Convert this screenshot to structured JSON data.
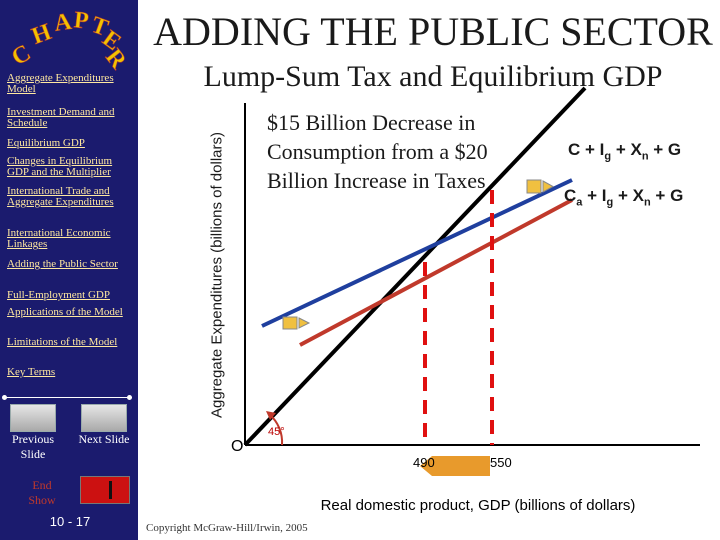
{
  "header": {
    "title": "ADDING THE PUBLIC SECTOR",
    "subtitle": "Lump-Sum Tax and Equilibrium GDP"
  },
  "sidebar": {
    "logo_text": "CHAPTER",
    "items": [
      {
        "label": "Aggregate Expenditures Model"
      },
      {
        "label": "Investment Demand and Schedule"
      },
      {
        "label": "Equilibrium GDP"
      },
      {
        "label": "Changes in Equilibrium GDP and the Multiplier"
      },
      {
        "label": "International Trade and Aggregate Expenditures"
      },
      {
        "label": "International Economic Linkages"
      },
      {
        "label": "Adding the Public Sector"
      },
      {
        "label": "Full-Employment GDP"
      },
      {
        "label": "Applications of the Model"
      },
      {
        "label": "Limitations of the Model"
      },
      {
        "label": "Key Terms"
      }
    ],
    "prev_label": "Previous Slide",
    "next_label": "Next Slide",
    "end_label": "End Show",
    "page_number": "10 - 17"
  },
  "diagram": {
    "ylabel": "Aggregate Expenditures (billions of dollars)",
    "xlabel": "Real domestic product, GDP (billions of dollars)",
    "origin": "O",
    "callout": "$15 Billion Decrease in Consumption from a $20 Billion Increase in Taxes",
    "line_upper": {
      "prefix": "C + I",
      "sub1": "g",
      "mid": " + X",
      "sub2": "n",
      "suffix": " + G"
    },
    "line_lower": {
      "prefix": "C",
      "sub0": "a",
      "mid0": " + I",
      "sub1": "g",
      "mid": " + X",
      "sub2": "n",
      "suffix": " + G"
    },
    "angle_label": "45°",
    "x_ticks": [
      "490",
      "550"
    ],
    "colors": {
      "upper_line": "#1f3f9e",
      "lower_line": "#c0392b",
      "reference_line": "#000000",
      "dashed": "#e01010"
    }
  },
  "footer": {
    "copyright": "Copyright McGraw-Hill/Irwin, 2005"
  }
}
